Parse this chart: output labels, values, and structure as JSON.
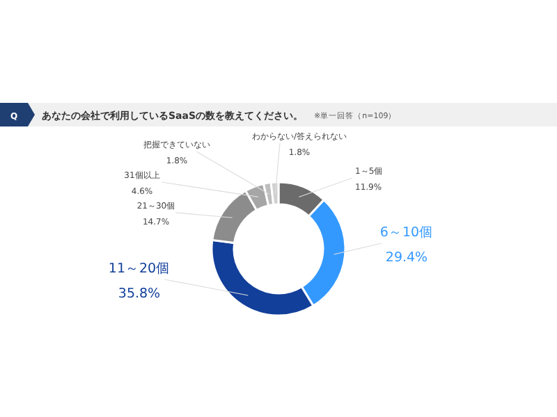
{
  "chart_data": {
    "type": "donut",
    "title": "あなたの会社で利用しているSaaSの数を教えてください。",
    "subtitle": "※単一回答（n=109）",
    "annotations": [
      "Q"
    ],
    "value_labels": [
      "11.9%",
      "29.4%",
      "35.8%",
      "14.7%",
      "4.6%",
      "1.8%",
      "1.8%"
    ],
    "categories": [
      "1～5個",
      "6～10個",
      "11～20個",
      "21～30個",
      "31個以上",
      "把握できていない",
      "わからない/答えられない"
    ],
    "values": [
      11.9,
      29.4,
      35.8,
      14.7,
      4.6,
      1.8,
      1.8
    ],
    "colors": [
      "#6b6b6b",
      "#3399ff",
      "#123f9a",
      "#8c8c8c",
      "#a6a6a6",
      "#bdbdbd",
      "#d0d0d0"
    ]
  }
}
